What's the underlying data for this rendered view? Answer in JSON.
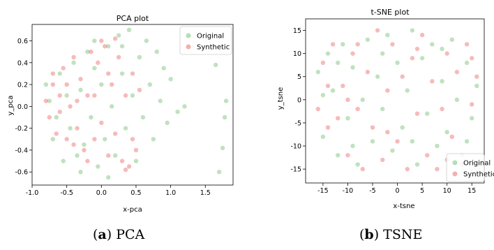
{
  "chart_data": [
    {
      "type": "scatter",
      "title": "PCA plot",
      "xlabel": "x-pca",
      "ylabel": "y_pca",
      "xlim": [
        -1.0,
        1.9
      ],
      "ylim": [
        -0.72,
        0.75
      ],
      "xticks": [
        "-1.0",
        "-0.5",
        "0.0",
        "0.5",
        "1.0",
        "1.5"
      ],
      "xtick_values": [
        -1.0,
        -0.5,
        0.0,
        0.5,
        1.0,
        1.5
      ],
      "yticks": [
        "-0.6",
        "-0.4",
        "-0.2",
        "0.0",
        "0.2",
        "0.4",
        "0.6"
      ],
      "ytick_values": [
        -0.6,
        -0.4,
        -0.2,
        0.0,
        0.2,
        0.4,
        0.6
      ],
      "legend_position": "top-right",
      "series": [
        {
          "name": "Original",
          "color": "#2ca02c",
          "points": [
            [
              -0.8,
              0.2
            ],
            [
              -0.75,
              0.05
            ],
            [
              -0.7,
              -0.3
            ],
            [
              -0.6,
              0.3
            ],
            [
              -0.55,
              -0.5
            ],
            [
              -0.5,
              0.1
            ],
            [
              -0.45,
              -0.2
            ],
            [
              -0.4,
              0.4
            ],
            [
              -0.35,
              -0.45
            ],
            [
              -0.3,
              0.15
            ],
            [
              -0.25,
              -0.35
            ],
            [
              -0.2,
              0.5
            ],
            [
              -0.15,
              -0.1
            ],
            [
              -0.1,
              0.35
            ],
            [
              -0.05,
              -0.55
            ],
            [
              0.0,
              0.2
            ],
            [
              0.05,
              -0.3
            ],
            [
              0.1,
              0.55
            ],
            [
              0.15,
              0.0
            ],
            [
              0.2,
              -0.45
            ],
            [
              0.25,
              0.65
            ],
            [
              0.3,
              0.3
            ],
            [
              0.35,
              -0.2
            ],
            [
              0.4,
              0.7
            ],
            [
              0.45,
              0.1
            ],
            [
              0.5,
              -0.5
            ],
            [
              0.55,
              0.45
            ],
            [
              0.6,
              -0.1
            ],
            [
              0.65,
              0.6
            ],
            [
              0.7,
              0.2
            ],
            [
              0.75,
              -0.3
            ],
            [
              0.8,
              0.5
            ],
            [
              0.85,
              0.05
            ],
            [
              0.9,
              0.35
            ],
            [
              0.95,
              -0.15
            ],
            [
              1.0,
              0.25
            ],
            [
              1.1,
              -0.05
            ],
            [
              1.2,
              0.0
            ],
            [
              1.65,
              0.38
            ],
            [
              1.75,
              -0.38
            ],
            [
              1.78,
              -0.1
            ],
            [
              1.8,
              0.05
            ],
            [
              1.7,
              -0.6
            ],
            [
              -0.65,
              -0.1
            ],
            [
              -0.3,
              -0.6
            ],
            [
              0.1,
              -0.65
            ],
            [
              0.3,
              0.55
            ],
            [
              -0.1,
              0.6
            ]
          ]
        },
        {
          "name": "Synthetic",
          "color": "#e41a1c",
          "points": [
            [
              -0.8,
              0.05
            ],
            [
              -0.75,
              -0.1
            ],
            [
              -0.7,
              0.2
            ],
            [
              -0.65,
              -0.25
            ],
            [
              -0.6,
              0.1
            ],
            [
              -0.55,
              0.35
            ],
            [
              -0.5,
              -0.3
            ],
            [
              -0.45,
              0.0
            ],
            [
              -0.4,
              0.45
            ],
            [
              -0.35,
              -0.2
            ],
            [
              -0.3,
              0.25
            ],
            [
              -0.25,
              -0.4
            ],
            [
              -0.2,
              0.1
            ],
            [
              -0.15,
              0.5
            ],
            [
              -0.1,
              -0.3
            ],
            [
              -0.05,
              0.4
            ],
            [
              0.0,
              -0.15
            ],
            [
              0.05,
              0.55
            ],
            [
              0.1,
              -0.45
            ],
            [
              0.15,
              0.2
            ],
            [
              0.2,
              -0.25
            ],
            [
              0.25,
              0.45
            ],
            [
              0.3,
              -0.5
            ],
            [
              0.35,
              0.1
            ],
            [
              0.4,
              -0.55
            ],
            [
              0.45,
              0.3
            ],
            [
              0.5,
              -0.4
            ],
            [
              0.55,
              0.15
            ],
            [
              -0.6,
              -0.05
            ],
            [
              -0.5,
              0.2
            ],
            [
              -0.4,
              -0.35
            ],
            [
              -0.2,
              -0.5
            ],
            [
              0.0,
              0.6
            ],
            [
              0.2,
              0.62
            ],
            [
              -0.7,
              0.3
            ],
            [
              0.35,
              -0.58
            ],
            [
              0.45,
              -0.3
            ],
            [
              -0.1,
              0.1
            ],
            [
              0.1,
              0.3
            ],
            [
              -0.35,
              0.05
            ]
          ]
        }
      ]
    },
    {
      "type": "scatter",
      "title": "t-SNE plot",
      "xlabel": "x-tsne",
      "ylabel": "y_tsne",
      "xlim": [
        -18.5,
        17.5
      ],
      "ylim": [
        -18.0,
        17.5
      ],
      "xticks": [
        "-15",
        "-10",
        "-5",
        "0",
        "5",
        "10",
        "15"
      ],
      "xtick_values": [
        -15,
        -10,
        -5,
        0,
        5,
        10,
        15
      ],
      "yticks": [
        "-15",
        "-10",
        "-5",
        "0",
        "5",
        "10",
        "15"
      ],
      "ytick_values": [
        -15,
        -10,
        -5,
        0,
        5,
        10,
        15
      ],
      "legend_position": "bottom-right",
      "series": [
        {
          "name": "Original",
          "color": "#2ca02c",
          "points": [
            [
              -16,
              6
            ],
            [
              -15,
              -8
            ],
            [
              -14,
              10
            ],
            [
              -13,
              2
            ],
            [
              -12,
              -12
            ],
            [
              -11,
              12
            ],
            [
              -10,
              -4
            ],
            [
              -9,
              7
            ],
            [
              -8,
              -14
            ],
            [
              -7,
              0
            ],
            [
              -6,
              13
            ],
            [
              -5,
              -9
            ],
            [
              -4,
              5
            ],
            [
              -3,
              -2
            ],
            [
              -2,
              14
            ],
            [
              -1,
              -11
            ],
            [
              0,
              8
            ],
            [
              1,
              -6
            ],
            [
              2,
              2
            ],
            [
              3,
              15
            ],
            [
              4,
              -14
            ],
            [
              5,
              9
            ],
            [
              6,
              -3
            ],
            [
              7,
              12
            ],
            [
              8,
              -10
            ],
            [
              9,
              4
            ],
            [
              10,
              -7
            ],
            [
              11,
              13
            ],
            [
              12,
              0
            ],
            [
              13,
              -12
            ],
            [
              14,
              8
            ],
            [
              15,
              -4
            ],
            [
              16,
              3
            ],
            [
              -15,
              1
            ],
            [
              -9,
              -10
            ],
            [
              -3,
              10
            ],
            [
              3,
              -9
            ],
            [
              9,
              11
            ],
            [
              14,
              -9
            ],
            [
              -12,
              8
            ]
          ]
        },
        {
          "name": "Synthetic",
          "color": "#e41a1c",
          "points": [
            [
              -16,
              -2
            ],
            [
              -15,
              8
            ],
            [
              -14,
              -6
            ],
            [
              -13,
              12
            ],
            [
              -12,
              -4
            ],
            [
              -11,
              3
            ],
            [
              -10,
              -12
            ],
            [
              -9,
              10
            ],
            [
              -8,
              -2
            ],
            [
              -7,
              -15
            ],
            [
              -6,
              6
            ],
            [
              -5,
              -6
            ],
            [
              -4,
              15
            ],
            [
              -3,
              -13
            ],
            [
              -2,
              2
            ],
            [
              -1,
              12
            ],
            [
              0,
              -9
            ],
            [
              1,
              5
            ],
            [
              2,
              -15
            ],
            [
              3,
              9
            ],
            [
              4,
              -3
            ],
            [
              5,
              14
            ],
            [
              6,
              -12
            ],
            [
              7,
              4
            ],
            [
              8,
              -15
            ],
            [
              9,
              -2
            ],
            [
              10,
              10
            ],
            [
              11,
              -8
            ],
            [
              12,
              6
            ],
            [
              13,
              -14
            ],
            [
              14,
              12
            ],
            [
              15,
              -1
            ],
            [
              16,
              5
            ],
            [
              -14,
              3
            ],
            [
              -8,
              12
            ],
            [
              -2,
              -7
            ],
            [
              4,
              11
            ],
            [
              10,
              -13
            ],
            [
              15,
              9
            ],
            [
              -10,
              0
            ]
          ]
        }
      ]
    }
  ],
  "captions": [
    {
      "letter": "a",
      "text": "PCA"
    },
    {
      "letter": "b",
      "text": "TSNE"
    }
  ]
}
